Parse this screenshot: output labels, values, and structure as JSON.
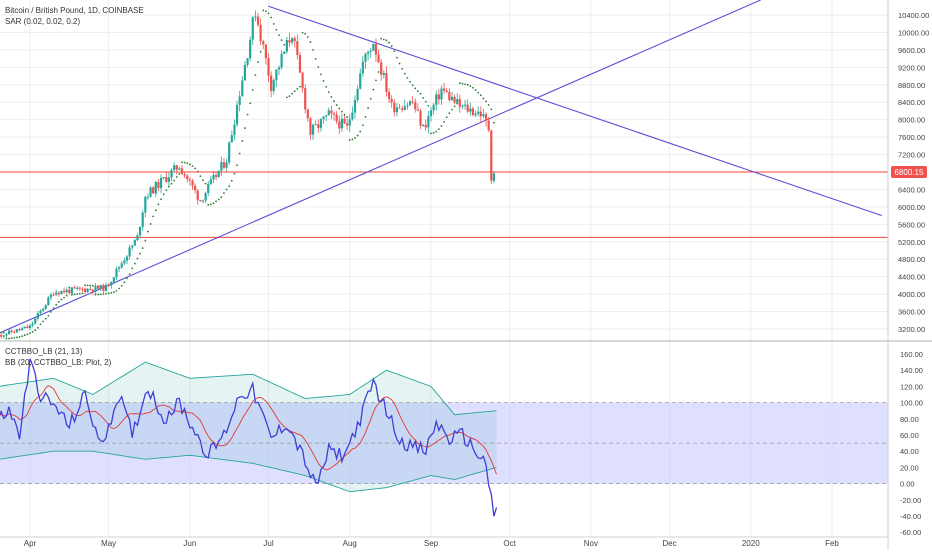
{
  "header": {
    "symbol_title": "Bitcoin / British Pound, 1D, COINBASE",
    "indicator_1": "SAR (0.02, 0.02, 0.2)"
  },
  "lower_pane": {
    "indicator_1": "CCTBBO_LB (21, 13)",
    "indicator_2": "BB (20, CCTBBO_LB: Plot, 2)"
  },
  "price_badge": "6800.15",
  "colors": {
    "up": "#26a69a",
    "down": "#ef5350",
    "trendline": "#5b4fd6",
    "horizontal_line": "#f44336",
    "sar": "#2e7d32",
    "osc": "#3f3fd8",
    "osc_signal": "#e53935",
    "bb_line": "#26a69a",
    "bb_fill": "#26a69a",
    "band_fill": "#c5c5ff",
    "badge_bg": "#ef5350"
  },
  "chart_data": [
    {
      "type": "candlestick",
      "title": "Bitcoin / British Pound, 1D, COINBASE",
      "x_ticks": [
        "Apr",
        "May",
        "Jun",
        "Jul",
        "Aug",
        "Sep",
        "Oct",
        "Nov",
        "Dec",
        "2020",
        "Feb"
      ],
      "y_ticks": [
        "10400.00",
        "10000.00",
        "9600.00",
        "9200.00",
        "8800.00",
        "8400.00",
        "8000.00",
        "7600.00",
        "7200.00",
        "6800.00",
        "6400.00",
        "6000.00",
        "5600.00",
        "5200.00",
        "4800.00",
        "4400.00",
        "4000.00",
        "3600.00",
        "3200.00"
      ],
      "ylim": [
        3000,
        10600
      ],
      "key_points": [
        {
          "date": "Mar 20",
          "price": 3050
        },
        {
          "date": "Apr 1",
          "price": 3250
        },
        {
          "date": "Apr 10",
          "price": 4050
        },
        {
          "date": "Apr 30",
          "price": 4150
        },
        {
          "date": "May 12",
          "price": 5300
        },
        {
          "date": "May 15",
          "price": 6250
        },
        {
          "date": "May 28",
          "price": 6950
        },
        {
          "date": "Jun 5",
          "price": 6150
        },
        {
          "date": "Jun 15",
          "price": 7100
        },
        {
          "date": "Jun 26",
          "price": 10500
        },
        {
          "date": "Jul 2",
          "price": 8800
        },
        {
          "date": "Jul 10",
          "price": 10000
        },
        {
          "date": "Jul 17",
          "price": 7700
        },
        {
          "date": "Jul 24",
          "price": 8100
        },
        {
          "date": "Jul 31",
          "price": 7800
        },
        {
          "date": "Aug 6",
          "price": 9300
        },
        {
          "date": "Aug 10",
          "price": 9800
        },
        {
          "date": "Aug 17",
          "price": 8300
        },
        {
          "date": "Aug 25",
          "price": 8400
        },
        {
          "date": "Aug 29",
          "price": 7800
        },
        {
          "date": "Sep 5",
          "price": 8700
        },
        {
          "date": "Sep 12",
          "price": 8300
        },
        {
          "date": "Sep 20",
          "price": 8150
        },
        {
          "date": "Sep 23",
          "price": 7800
        },
        {
          "date": "Sep 24",
          "price": 6700
        },
        {
          "date": "Sep 25",
          "price": 6800
        }
      ],
      "current_price": 6800.15,
      "horizontal_lines": [
        6800.15,
        5300
      ],
      "trendlines": [
        {
          "from": {
            "date": "Mar 20",
            "price": 3100
          },
          "to": {
            "date": "Sep 30",
            "price": 8200
          },
          "extended": true
        },
        {
          "from": {
            "date": "Jul 1",
            "price": 10600
          },
          "to": {
            "date": "Feb 20",
            "price": 5800
          }
        }
      ]
    },
    {
      "type": "line",
      "title": "CCTBBO_LB (21, 13)",
      "y_ticks": [
        "160.00",
        "140.00",
        "120.00",
        "100.00",
        "80.00",
        "60.00",
        "40.00",
        "20.00",
        "0.00",
        "-20.00",
        "-40.00",
        "-60.00"
      ],
      "ylim": [
        -60,
        165
      ],
      "reference_levels": [
        100,
        50,
        0
      ],
      "oscillator_points": [
        {
          "date": "Mar 20",
          "value": 80
        },
        {
          "date": "Mar 24",
          "value": 90
        },
        {
          "date": "Mar 28",
          "value": 60
        },
        {
          "date": "Apr 1",
          "value": 150
        },
        {
          "date": "Apr 5",
          "value": 110
        },
        {
          "date": "Apr 12",
          "value": 90
        },
        {
          "date": "Apr 16",
          "value": 70
        },
        {
          "date": "Apr 22",
          "value": 110
        },
        {
          "date": "Apr 28",
          "value": 45
        },
        {
          "date": "May 5",
          "value": 110
        },
        {
          "date": "May 10",
          "value": 60
        },
        {
          "date": "May 16",
          "value": 120
        },
        {
          "date": "May 22",
          "value": 80
        },
        {
          "date": "May 28",
          "value": 100
        },
        {
          "date": "Jun 2",
          "value": 70
        },
        {
          "date": "Jun 8",
          "value": 35
        },
        {
          "date": "Jun 14",
          "value": 60
        },
        {
          "date": "Jun 20",
          "value": 110
        },
        {
          "date": "Jun 25",
          "value": 115
        },
        {
          "date": "Jul 2",
          "value": 55
        },
        {
          "date": "Jul 8",
          "value": 75
        },
        {
          "date": "Jul 14",
          "value": 35
        },
        {
          "date": "Jul 19",
          "value": -5
        },
        {
          "date": "Jul 24",
          "value": 40
        },
        {
          "date": "Jul 30",
          "value": 35
        },
        {
          "date": "Aug 5",
          "value": 80
        },
        {
          "date": "Aug 10",
          "value": 125
        },
        {
          "date": "Aug 15",
          "value": 90
        },
        {
          "date": "Aug 20",
          "value": 55
        },
        {
          "date": "Aug 25",
          "value": 45
        },
        {
          "date": "Aug 30",
          "value": 40
        },
        {
          "date": "Sep 3",
          "value": 75
        },
        {
          "date": "Sep 8",
          "value": 55
        },
        {
          "date": "Sep 13",
          "value": 60
        },
        {
          "date": "Sep 18",
          "value": 40
        },
        {
          "date": "Sep 22",
          "value": 25
        },
        {
          "date": "Sep 25",
          "value": -45
        },
        {
          "date": "Sep 26",
          "value": -30
        }
      ],
      "bb_upper_points": [
        {
          "date": "Mar 20",
          "value": 120
        },
        {
          "date": "Apr 10",
          "value": 130
        },
        {
          "date": "Apr 25",
          "value": 110
        },
        {
          "date": "May 15",
          "value": 150
        },
        {
          "date": "Jun 1",
          "value": 130
        },
        {
          "date": "Jun 25",
          "value": 135
        },
        {
          "date": "Jul 15",
          "value": 105
        },
        {
          "date": "Aug 1",
          "value": 110
        },
        {
          "date": "Aug 15",
          "value": 140
        },
        {
          "date": "Sep 1",
          "value": 120
        },
        {
          "date": "Sep 10",
          "value": 85
        },
        {
          "date": "Sep 26",
          "value": 90
        }
      ],
      "bb_lower_points": [
        {
          "date": "Mar 20",
          "value": 30
        },
        {
          "date": "Apr 10",
          "value": 40
        },
        {
          "date": "Apr 25",
          "value": 40
        },
        {
          "date": "May 15",
          "value": 30
        },
        {
          "date": "Jun 1",
          "value": 35
        },
        {
          "date": "Jun 25",
          "value": 25
        },
        {
          "date": "Jul 15",
          "value": 10
        },
        {
          "date": "Aug 1",
          "value": -10
        },
        {
          "date": "Aug 15",
          "value": -5
        },
        {
          "date": "Sep 1",
          "value": 10
        },
        {
          "date": "Sep 10",
          "value": 5
        },
        {
          "date": "Sep 26",
          "value": 20
        }
      ]
    }
  ]
}
